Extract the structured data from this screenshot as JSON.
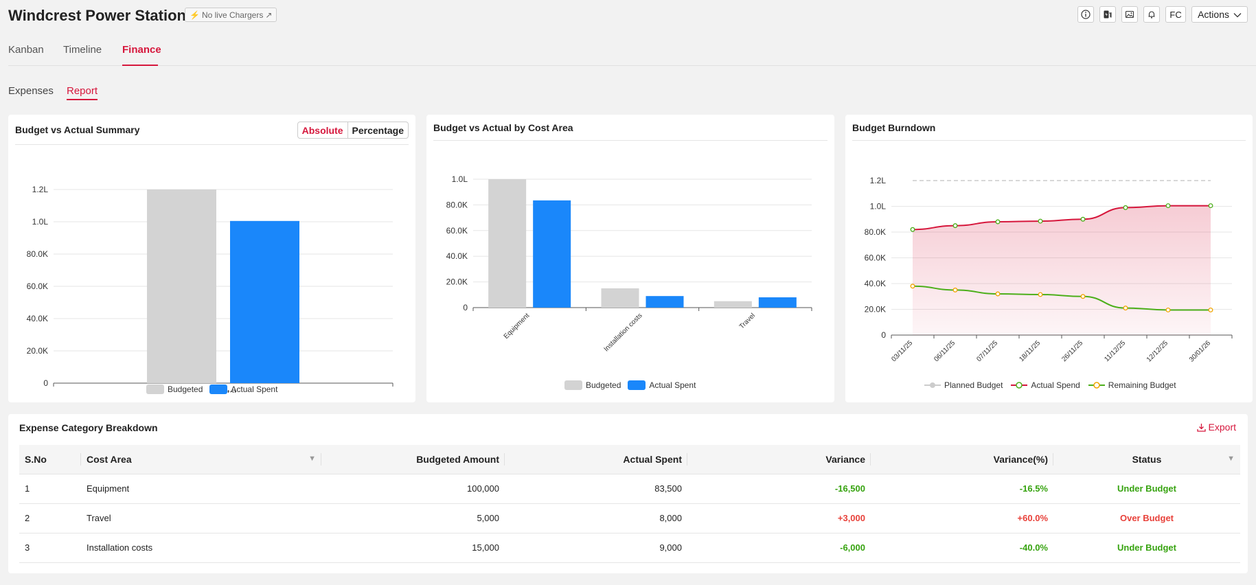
{
  "header": {
    "title": "Windcrest Power Station",
    "live_badge": "No live Chargers",
    "fc_label": "FC",
    "actions_label": "Actions",
    "icons": [
      "info-icon",
      "charger-icon",
      "image-icon",
      "bell-icon"
    ]
  },
  "tabs": [
    {
      "label": "Kanban"
    },
    {
      "label": "Timeline"
    },
    {
      "label": "Finance",
      "active": true
    }
  ],
  "subtabs": [
    {
      "label": "Expenses"
    },
    {
      "label": "Report",
      "active": true
    }
  ],
  "colors": {
    "accent": "#d6173c",
    "budgeted": "#d3d3d3",
    "actual": "#1a87fa",
    "positive": "#37a310",
    "negative": "#e8413a",
    "actual_spend_line": "#d6173c",
    "remaining_line": "#4caf1a",
    "planned_line": "#cccccc"
  },
  "summary_card": {
    "title": "Budget vs Actual Summary",
    "toggle": {
      "absolute": "Absolute",
      "percentage": "Percentage",
      "selected": "Absolute"
    }
  },
  "cost_area_card": {
    "title": "Budget vs Actual by Cost Area"
  },
  "burndown_card": {
    "title": "Budget Burndown"
  },
  "chart_data": [
    {
      "type": "bar",
      "title": "Budget vs Actual Summary",
      "categories": [
        "Capital"
      ],
      "series": [
        {
          "name": "Budgeted",
          "values": [
            120000
          ]
        },
        {
          "name": "Actual Spent",
          "values": [
            100500
          ]
        }
      ],
      "yticks": [
        "0",
        "20.0K",
        "40.0K",
        "60.0K",
        "80.0K",
        "1.0L",
        "1.2L"
      ],
      "ylim": [
        0,
        120000
      ],
      "legend": "bottom",
      "grid": true
    },
    {
      "type": "bar",
      "title": "Budget vs Actual by Cost Area",
      "categories": [
        "Equipment",
        "Installation costs",
        "Travel"
      ],
      "series": [
        {
          "name": "Budgeted",
          "values": [
            100000,
            15000,
            5000
          ]
        },
        {
          "name": "Actual Spent",
          "values": [
            83500,
            9000,
            8000
          ]
        }
      ],
      "yticks": [
        "0",
        "20.0K",
        "40.0K",
        "60.0K",
        "80.0K",
        "1.0L"
      ],
      "ylim": [
        0,
        100000
      ],
      "legend": "bottom",
      "grid": true
    },
    {
      "type": "line",
      "title": "Budget Burndown",
      "x": [
        "03/11/25",
        "06/11/25",
        "07/11/25",
        "18/11/25",
        "26/11/25",
        "11/12/25",
        "12/12/25",
        "30/01/26"
      ],
      "series": [
        {
          "name": "Planned Budget",
          "values": [
            120000,
            120000,
            120000,
            120000,
            120000,
            120000,
            120000,
            120000
          ]
        },
        {
          "name": "Actual Spend",
          "values": [
            82000,
            85000,
            88000,
            88500,
            90000,
            99000,
            100500,
            100500
          ]
        },
        {
          "name": "Remaining Budget",
          "values": [
            38000,
            35000,
            32000,
            31500,
            30000,
            21000,
            19500,
            19500
          ]
        }
      ],
      "yticks": [
        "0",
        "20.0K",
        "40.0K",
        "60.0K",
        "80.0K",
        "1.0L",
        "1.2L"
      ],
      "ylim": [
        0,
        120000
      ],
      "legend": "bottom",
      "grid": true
    }
  ],
  "table": {
    "title": "Expense Category Breakdown",
    "export_label": "Export",
    "columns": [
      "S.No",
      "Cost Area",
      "Budgeted Amount",
      "Actual Spent",
      "Variance",
      "Variance(%)",
      "Status"
    ],
    "rows": [
      {
        "sno": "1",
        "area": "Equipment",
        "budgeted": "100,000",
        "actual": "83,500",
        "variance": "-16,500",
        "variance_pct": "-16.5%",
        "status": "Under Budget",
        "under": true
      },
      {
        "sno": "2",
        "area": "Travel",
        "budgeted": "5,000",
        "actual": "8,000",
        "variance": "+3,000",
        "variance_pct": "+60.0%",
        "status": "Over Budget",
        "under": false
      },
      {
        "sno": "3",
        "area": "Installation costs",
        "budgeted": "15,000",
        "actual": "9,000",
        "variance": "-6,000",
        "variance_pct": "-40.0%",
        "status": "Under Budget",
        "under": true
      }
    ]
  }
}
